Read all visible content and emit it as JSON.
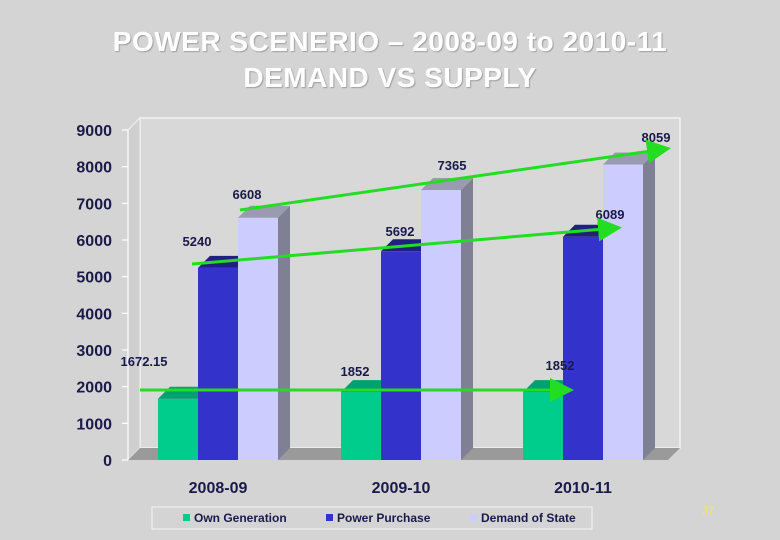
{
  "slide": {
    "title_line1": "POWER SCENERIO – 2008-09 to 2010-11",
    "title_line2": "DEMAND VS SUPPLY",
    "page_number": "37"
  },
  "chart_data": {
    "type": "bar",
    "title": "POWER SCENERIO – 2008-09 to 2010-11 DEMAND VS SUPPLY",
    "categories": [
      "2008-09",
      "2009-10",
      "2010-11"
    ],
    "series": [
      {
        "name": "Own Generation",
        "values": [
          1672.15,
          1852,
          1852
        ],
        "labels": [
          "1672.15",
          "1852",
          "1852"
        ],
        "color": "#00cc8c",
        "top_color": "#00a070",
        "side_color": "#009a68"
      },
      {
        "name": "Power Purchase",
        "values": [
          5240,
          5692,
          6089
        ],
        "labels": [
          "5240",
          "5692",
          "6089"
        ],
        "color": "#3333cc",
        "top_color": "#202080",
        "side_color": "#1c1c78"
      },
      {
        "name": "Demand of State",
        "values": [
          6608,
          7365,
          8059
        ],
        "labels": [
          "6608",
          "7365",
          "8059"
        ],
        "color": "#ccccff",
        "top_color": "#9a9ab0",
        "side_color": "#808094"
      }
    ],
    "yticks": [
      "0",
      "1000",
      "2000",
      "3000",
      "4000",
      "5000",
      "6000",
      "7000",
      "8000",
      "9000"
    ],
    "ylim": [
      0,
      9000
    ],
    "grid": false,
    "legend_position": "bottom",
    "trend_arrow_color": "#22dd22",
    "xlabel": "",
    "ylabel": ""
  }
}
